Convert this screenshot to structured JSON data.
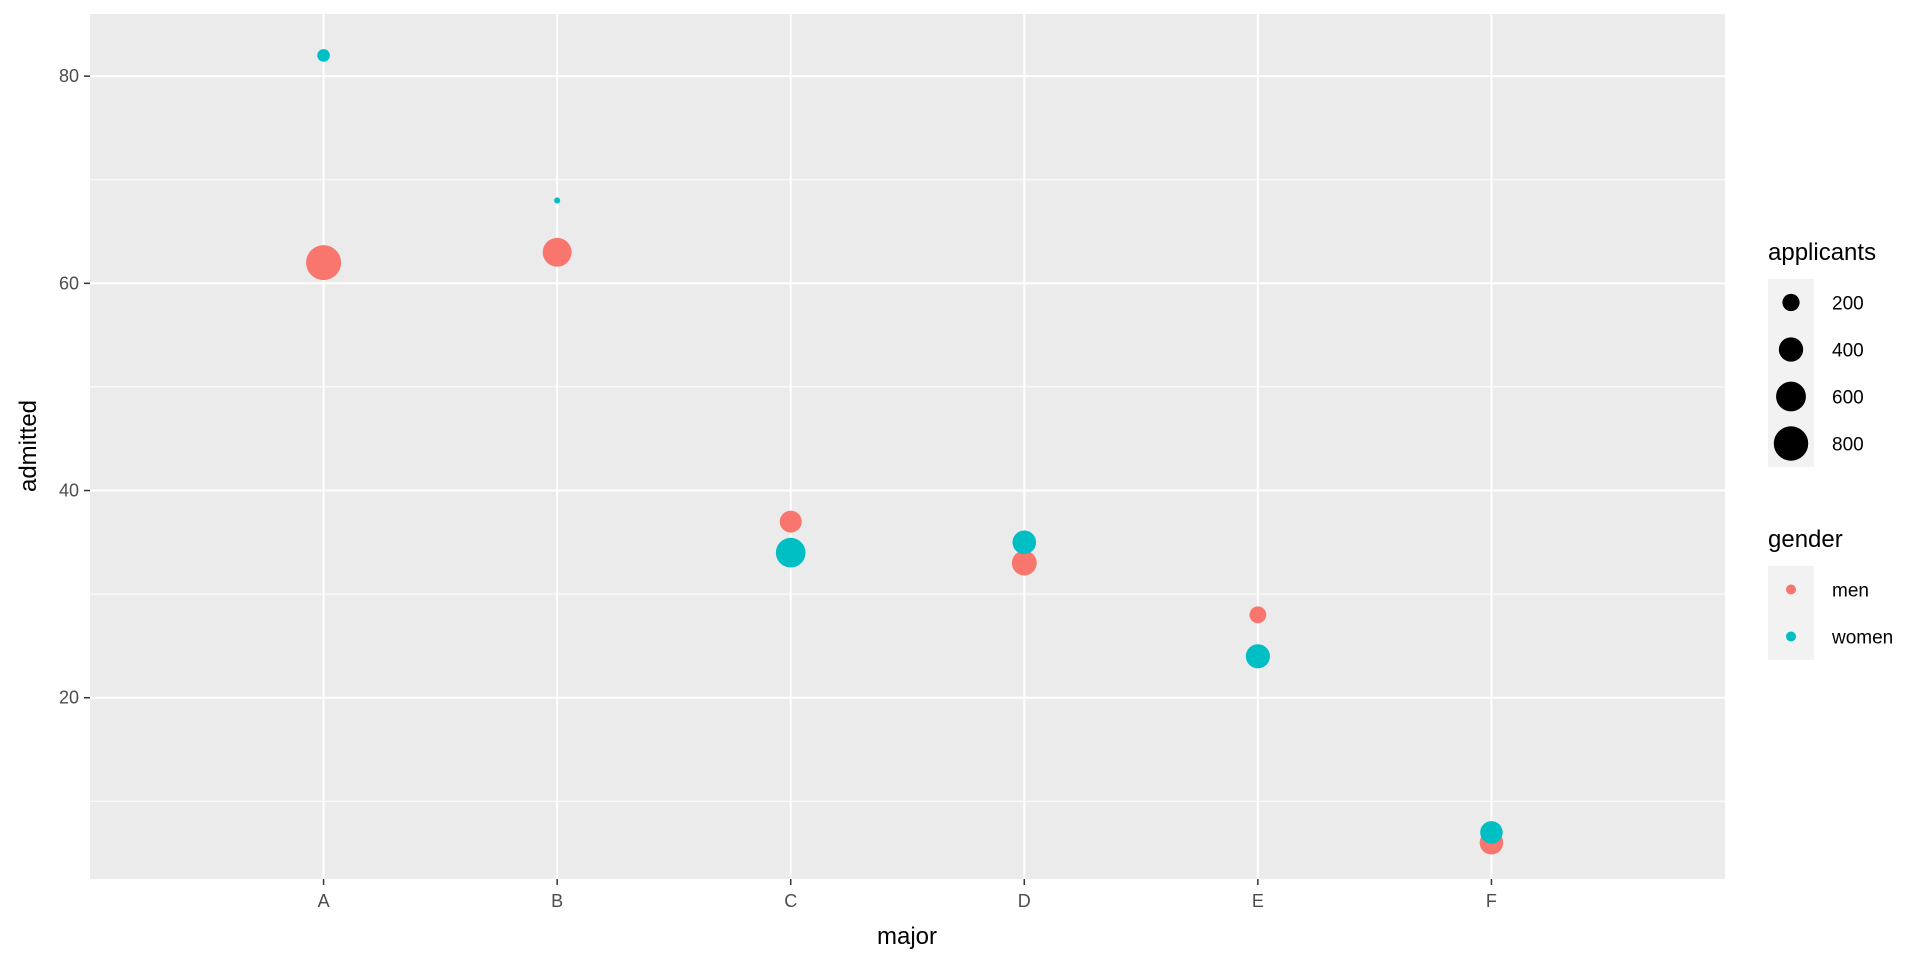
{
  "chart_data": {
    "type": "scatter",
    "title": "",
    "xlabel": "major",
    "ylabel": "admitted",
    "categories": [
      "A",
      "B",
      "C",
      "D",
      "E",
      "F"
    ],
    "ylim": [
      2.5,
      86
    ],
    "y_ticks": [
      20,
      40,
      60,
      80
    ],
    "y_tick_labels": [
      "20",
      "40",
      "60",
      "80"
    ],
    "grid": true,
    "legend_position": "right",
    "size_legend": {
      "title": "applicants",
      "entries": [
        {
          "label": "200",
          "value": 200
        },
        {
          "label": "400",
          "value": 400
        },
        {
          "label": "600",
          "value": 600
        },
        {
          "label": "800",
          "value": 800
        }
      ]
    },
    "color_legend": {
      "title": "gender",
      "entries": [
        {
          "label": "men",
          "color": "#F8766D"
        },
        {
          "label": "women",
          "color": "#00BFC4"
        }
      ]
    },
    "series": [
      {
        "name": "men",
        "color": "#F8766D",
        "points": [
          {
            "x": "A",
            "y": 62,
            "size": 825
          },
          {
            "x": "B",
            "y": 63,
            "size": 560
          },
          {
            "x": "C",
            "y": 37,
            "size": 325
          },
          {
            "x": "D",
            "y": 33,
            "size": 417
          },
          {
            "x": "E",
            "y": 28,
            "size": 191
          },
          {
            "x": "F",
            "y": 6,
            "size": 373
          }
        ]
      },
      {
        "name": "women",
        "color": "#00BFC4",
        "points": [
          {
            "x": "A",
            "y": 82,
            "size": 108
          },
          {
            "x": "B",
            "y": 68,
            "size": 25
          },
          {
            "x": "C",
            "y": 34,
            "size": 593
          },
          {
            "x": "D",
            "y": 35,
            "size": 375
          },
          {
            "x": "E",
            "y": 24,
            "size": 393
          },
          {
            "x": "F",
            "y": 7,
            "size": 341
          }
        ]
      }
    ]
  }
}
